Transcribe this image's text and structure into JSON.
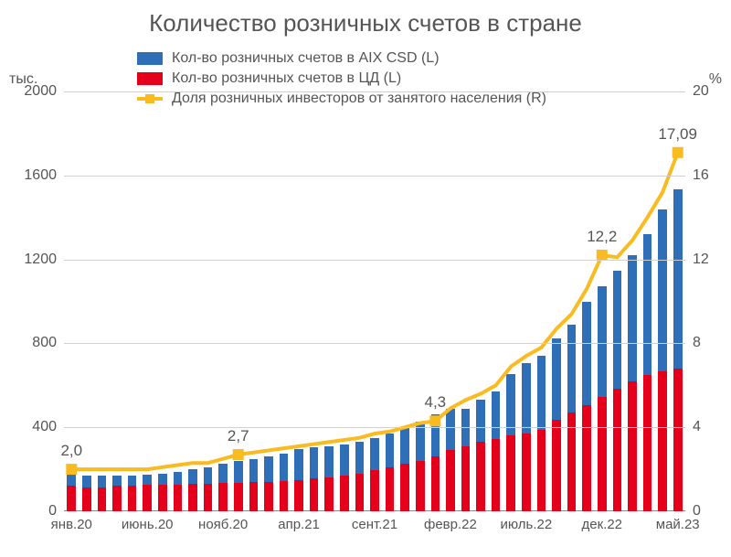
{
  "title": "Количество розничных счетов в стране",
  "y_label_left": "тыс.",
  "y_label_right": "%",
  "legend": {
    "aix": "Кол-во розничных счетов в AIX CSD (L)",
    "cd": "Кол-во розничных счетов в ЦД (L)",
    "share": "Доля розничных инвесторов от занятого населения (R)"
  },
  "colors": {
    "aix": "#2e6fb8",
    "cd": "#e4001b",
    "line": "#f9bb1f",
    "grid": "#d0d0d0",
    "text": "#555555",
    "bg": "#ffffff"
  },
  "left_axis": {
    "min": 0,
    "max": 2000,
    "ticks": [
      0,
      400,
      800,
      1200,
      1600,
      2000
    ]
  },
  "right_axis": {
    "min": 0,
    "max": 20,
    "ticks": [
      0,
      4,
      8,
      12,
      16,
      20
    ]
  },
  "x_labels": [
    {
      "idx": 0,
      "label": "янв.20"
    },
    {
      "idx": 5,
      "label": "июнь.20"
    },
    {
      "idx": 10,
      "label": "нояб.20"
    },
    {
      "idx": 15,
      "label": "апр.21"
    },
    {
      "idx": 20,
      "label": "сент.21"
    },
    {
      "idx": 25,
      "label": "февр.22"
    },
    {
      "idx": 30,
      "label": "июль.22"
    },
    {
      "idx": 35,
      "label": "дек.22"
    },
    {
      "idx": 40,
      "label": "май.23"
    }
  ],
  "annotations": [
    {
      "idx": 0,
      "value": "2,0"
    },
    {
      "idx": 11,
      "value": "2,7"
    },
    {
      "idx": 24,
      "value": "4,3"
    },
    {
      "idx": 35,
      "value": "12,2"
    },
    {
      "idx": 40,
      "value": "17,09"
    }
  ],
  "series": {
    "cd": [
      120,
      115,
      115,
      120,
      120,
      125,
      125,
      125,
      130,
      130,
      135,
      135,
      140,
      140,
      145,
      150,
      155,
      160,
      170,
      180,
      195,
      210,
      225,
      240,
      260,
      290,
      310,
      330,
      345,
      360,
      370,
      390,
      435,
      470,
      505,
      545,
      585,
      620,
      650,
      665,
      680
    ],
    "aix": [
      64,
      55,
      53,
      52,
      50,
      50,
      55,
      63,
      70,
      80,
      90,
      105,
      108,
      120,
      128,
      145,
      150,
      148,
      148,
      150,
      155,
      160,
      175,
      185,
      200,
      200,
      180,
      200,
      225,
      295,
      335,
      350,
      390,
      420,
      495,
      525,
      560,
      600,
      670,
      775,
      855
    ],
    "share": [
      2.0,
      2.0,
      2.0,
      2.0,
      2.0,
      2.0,
      2.1,
      2.2,
      2.3,
      2.3,
      2.5,
      2.7,
      2.8,
      2.9,
      3.0,
      3.1,
      3.2,
      3.3,
      3.4,
      3.5,
      3.7,
      3.8,
      4.0,
      4.2,
      4.3,
      4.9,
      5.3,
      5.6,
      6.0,
      6.9,
      7.4,
      7.8,
      8.7,
      9.4,
      10.6,
      12.2,
      12.1,
      12.9,
      14.0,
      15.2,
      17.09
    ]
  },
  "n_points": 41,
  "bar_rel_width": 0.58,
  "line_width": 4,
  "marker_size": 12
}
